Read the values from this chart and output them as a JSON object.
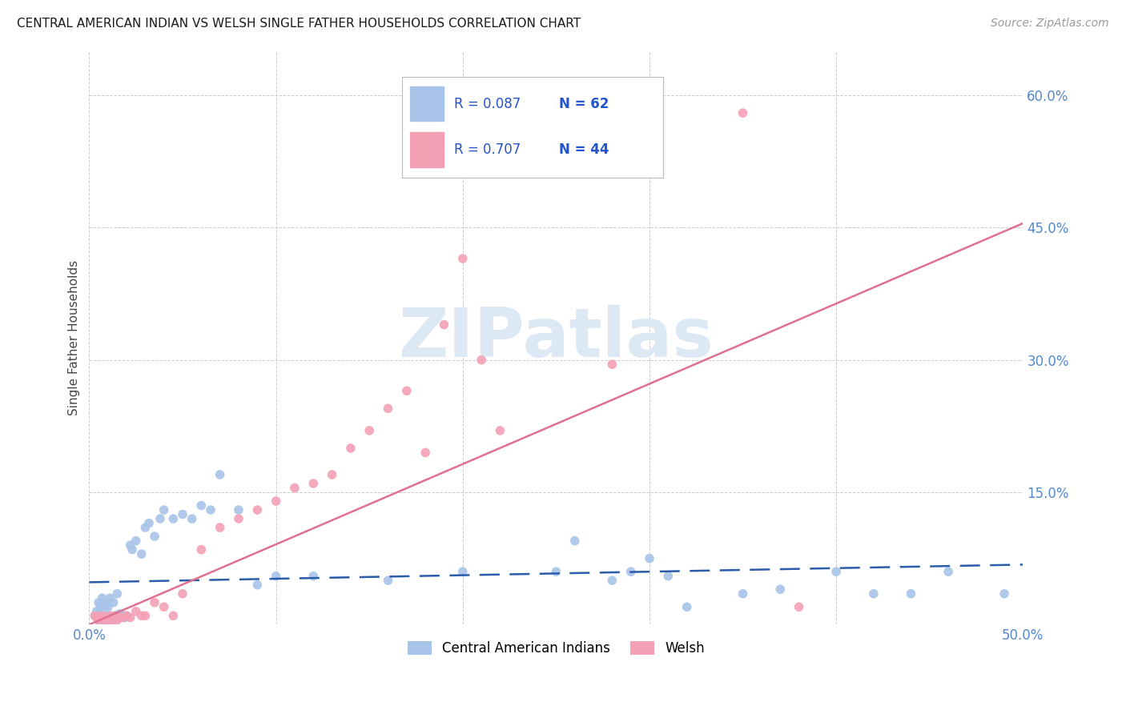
{
  "title": "CENTRAL AMERICAN INDIAN VS WELSH SINGLE FATHER HOUSEHOLDS CORRELATION CHART",
  "source": "Source: ZipAtlas.com",
  "ylabel": "Single Father Households",
  "xlim": [
    0.0,
    0.5
  ],
  "ylim": [
    0.0,
    0.65
  ],
  "ytick_vals": [
    0.0,
    0.15,
    0.3,
    0.45,
    0.6
  ],
  "ytick_labels": [
    "",
    "15.0%",
    "30.0%",
    "45.0%",
    "60.0%"
  ],
  "xtick_vals": [
    0.0,
    0.1,
    0.2,
    0.3,
    0.4,
    0.5
  ],
  "xtick_labels": [
    "0.0%",
    "",
    "",
    "",
    "",
    "50.0%"
  ],
  "blue_r": "0.087",
  "blue_n": "62",
  "pink_r": "0.707",
  "pink_n": "44",
  "blue_color": "#a8c4e8",
  "pink_color": "#f4a0b5",
  "blue_line_color": "#2a5caa",
  "pink_line_color": "#e07090",
  "tick_color": "#5588cc",
  "watermark_text": "ZIPatlas",
  "watermark_color": "#dce8f4",
  "blue_scatter_x": [
    0.003,
    0.004,
    0.005,
    0.005,
    0.006,
    0.006,
    0.007,
    0.007,
    0.008,
    0.008,
    0.009,
    0.009,
    0.01,
    0.01,
    0.011,
    0.011,
    0.012,
    0.013,
    0.013,
    0.014,
    0.015,
    0.015,
    0.016,
    0.017,
    0.018,
    0.019,
    0.02,
    0.022,
    0.023,
    0.025,
    0.028,
    0.03,
    0.032,
    0.035,
    0.038,
    0.04,
    0.045,
    0.05,
    0.055,
    0.06,
    0.065,
    0.07,
    0.08,
    0.09,
    0.1,
    0.12,
    0.16,
    0.2,
    0.28,
    0.3,
    0.31,
    0.32,
    0.35,
    0.37,
    0.4,
    0.42,
    0.44,
    0.46,
    0.49,
    0.25,
    0.26,
    0.29
  ],
  "blue_scatter_y": [
    0.01,
    0.015,
    0.005,
    0.025,
    0.005,
    0.02,
    0.01,
    0.03,
    0.005,
    0.02,
    0.01,
    0.025,
    0.005,
    0.02,
    0.01,
    0.03,
    0.005,
    0.01,
    0.025,
    0.008,
    0.01,
    0.035,
    0.012,
    0.012,
    0.01,
    0.008,
    0.01,
    0.09,
    0.085,
    0.095,
    0.08,
    0.11,
    0.115,
    0.1,
    0.12,
    0.13,
    0.12,
    0.125,
    0.12,
    0.135,
    0.13,
    0.17,
    0.13,
    0.045,
    0.055,
    0.055,
    0.05,
    0.06,
    0.05,
    0.075,
    0.055,
    0.02,
    0.035,
    0.04,
    0.06,
    0.035,
    0.035,
    0.06,
    0.035,
    0.06,
    0.095,
    0.06
  ],
  "pink_scatter_x": [
    0.003,
    0.004,
    0.005,
    0.006,
    0.007,
    0.008,
    0.009,
    0.01,
    0.011,
    0.012,
    0.013,
    0.014,
    0.015,
    0.016,
    0.018,
    0.02,
    0.022,
    0.025,
    0.028,
    0.03,
    0.035,
    0.04,
    0.045,
    0.05,
    0.06,
    0.07,
    0.08,
    0.09,
    0.1,
    0.11,
    0.12,
    0.13,
    0.14,
    0.15,
    0.16,
    0.17,
    0.18,
    0.19,
    0.2,
    0.21,
    0.22,
    0.28,
    0.35,
    0.38
  ],
  "pink_scatter_y": [
    0.01,
    0.008,
    0.005,
    0.008,
    0.01,
    0.005,
    0.008,
    0.005,
    0.01,
    0.008,
    0.005,
    0.01,
    0.005,
    0.008,
    0.008,
    0.01,
    0.008,
    0.015,
    0.01,
    0.01,
    0.025,
    0.02,
    0.01,
    0.035,
    0.085,
    0.11,
    0.12,
    0.13,
    0.14,
    0.155,
    0.16,
    0.17,
    0.2,
    0.22,
    0.245,
    0.265,
    0.195,
    0.34,
    0.415,
    0.3,
    0.22,
    0.295,
    0.58,
    0.02
  ],
  "blue_trend_x": [
    0.0,
    0.5
  ],
  "blue_trend_y": [
    0.048,
    0.068
  ],
  "pink_trend_x": [
    0.0,
    0.5
  ],
  "pink_trend_y": [
    0.0,
    0.455
  ],
  "legend_label_blue": "Central American Indians",
  "legend_label_pink": "Welsh"
}
